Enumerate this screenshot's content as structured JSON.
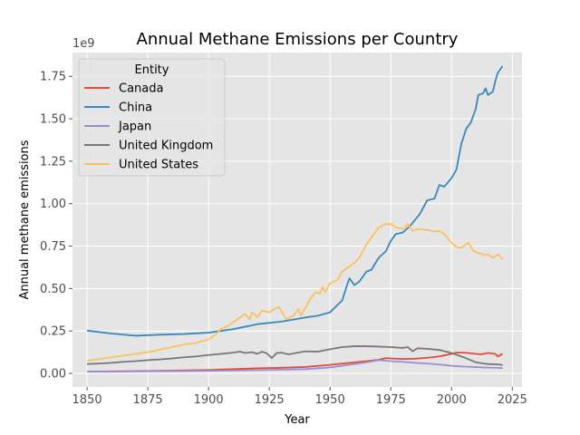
{
  "chart_data": {
    "type": "line",
    "title": "Annual Methane Emissions per Country",
    "xlabel": "Year",
    "ylabel": "Annual methane emissions",
    "y_multiplier_label": "1e9",
    "xlim": [
      1844,
      2029
    ],
    "ylim": [
      -80000000,
      1890000000
    ],
    "x_ticks": [
      1850,
      1875,
      1900,
      1925,
      1950,
      1975,
      2000,
      2025
    ],
    "y_ticks": [
      0,
      250000000,
      500000000,
      750000000,
      1000000000,
      1250000000,
      1500000000,
      1750000000
    ],
    "y_tick_labels": [
      "0.00",
      "0.25",
      "0.50",
      "0.75",
      "1.00",
      "1.25",
      "1.50",
      "1.75"
    ],
    "grid": true,
    "legend_title": "Entity",
    "legend_position": "upper-left",
    "series": [
      {
        "name": "Canada",
        "color": "#E24A33",
        "points": [
          [
            1850,
            10000000
          ],
          [
            1875,
            14000000
          ],
          [
            1900,
            20000000
          ],
          [
            1920,
            30000000
          ],
          [
            1930,
            33000000
          ],
          [
            1940,
            38000000
          ],
          [
            1950,
            50000000
          ],
          [
            1960,
            65000000
          ],
          [
            1965,
            72000000
          ],
          [
            1970,
            80000000
          ],
          [
            1973,
            90000000
          ],
          [
            1975,
            88000000
          ],
          [
            1980,
            85000000
          ],
          [
            1985,
            86000000
          ],
          [
            1990,
            92000000
          ],
          [
            1995,
            100000000
          ],
          [
            2000,
            115000000
          ],
          [
            2002,
            122000000
          ],
          [
            2005,
            122000000
          ],
          [
            2008,
            118000000
          ],
          [
            2012,
            112000000
          ],
          [
            2015,
            120000000
          ],
          [
            2018,
            115000000
          ],
          [
            2019,
            100000000
          ],
          [
            2021,
            115000000
          ]
        ]
      },
      {
        "name": "China",
        "color": "#348ABD",
        "points": [
          [
            1850,
            252000000
          ],
          [
            1860,
            235000000
          ],
          [
            1870,
            222000000
          ],
          [
            1880,
            228000000
          ],
          [
            1890,
            232000000
          ],
          [
            1900,
            240000000
          ],
          [
            1910,
            260000000
          ],
          [
            1920,
            290000000
          ],
          [
            1930,
            305000000
          ],
          [
            1940,
            330000000
          ],
          [
            1945,
            340000000
          ],
          [
            1950,
            360000000
          ],
          [
            1955,
            430000000
          ],
          [
            1957,
            520000000
          ],
          [
            1958,
            560000000
          ],
          [
            1960,
            520000000
          ],
          [
            1962,
            540000000
          ],
          [
            1965,
            600000000
          ],
          [
            1967,
            610000000
          ],
          [
            1970,
            680000000
          ],
          [
            1973,
            720000000
          ],
          [
            1975,
            780000000
          ],
          [
            1977,
            820000000
          ],
          [
            1980,
            830000000
          ],
          [
            1983,
            870000000
          ],
          [
            1987,
            940000000
          ],
          [
            1990,
            1020000000
          ],
          [
            1993,
            1030000000
          ],
          [
            1995,
            1110000000
          ],
          [
            1997,
            1100000000
          ],
          [
            2000,
            1150000000
          ],
          [
            2002,
            1200000000
          ],
          [
            2004,
            1350000000
          ],
          [
            2006,
            1440000000
          ],
          [
            2008,
            1480000000
          ],
          [
            2010,
            1560000000
          ],
          [
            2011,
            1640000000
          ],
          [
            2013,
            1650000000
          ],
          [
            2014,
            1680000000
          ],
          [
            2015,
            1640000000
          ],
          [
            2017,
            1660000000
          ],
          [
            2018,
            1720000000
          ],
          [
            2019,
            1770000000
          ],
          [
            2021,
            1810000000
          ]
        ]
      },
      {
        "name": "Japan",
        "color": "#988ED5",
        "points": [
          [
            1850,
            10000000
          ],
          [
            1875,
            12000000
          ],
          [
            1900,
            15000000
          ],
          [
            1925,
            20000000
          ],
          [
            1940,
            25000000
          ],
          [
            1950,
            35000000
          ],
          [
            1955,
            45000000
          ],
          [
            1960,
            55000000
          ],
          [
            1965,
            65000000
          ],
          [
            1970,
            78000000
          ],
          [
            1975,
            72000000
          ],
          [
            1980,
            68000000
          ],
          [
            1985,
            62000000
          ],
          [
            1990,
            58000000
          ],
          [
            1995,
            52000000
          ],
          [
            2000,
            45000000
          ],
          [
            2005,
            40000000
          ],
          [
            2010,
            37000000
          ],
          [
            2015,
            34000000
          ],
          [
            2020,
            32000000
          ],
          [
            2021,
            31000000
          ]
        ]
      },
      {
        "name": "United Kingdom",
        "color": "#777777",
        "points": [
          [
            1850,
            55000000
          ],
          [
            1855,
            58000000
          ],
          [
            1860,
            62000000
          ],
          [
            1865,
            68000000
          ],
          [
            1870,
            72000000
          ],
          [
            1875,
            78000000
          ],
          [
            1880,
            82000000
          ],
          [
            1885,
            88000000
          ],
          [
            1890,
            95000000
          ],
          [
            1895,
            100000000
          ],
          [
            1900,
            108000000
          ],
          [
            1905,
            115000000
          ],
          [
            1910,
            122000000
          ],
          [
            1913,
            128000000
          ],
          [
            1915,
            120000000
          ],
          [
            1918,
            125000000
          ],
          [
            1920,
            115000000
          ],
          [
            1922,
            128000000
          ],
          [
            1924,
            118000000
          ],
          [
            1926,
            90000000
          ],
          [
            1928,
            120000000
          ],
          [
            1930,
            122000000
          ],
          [
            1933,
            112000000
          ],
          [
            1936,
            120000000
          ],
          [
            1940,
            130000000
          ],
          [
            1945,
            128000000
          ],
          [
            1950,
            142000000
          ],
          [
            1955,
            155000000
          ],
          [
            1960,
            160000000
          ],
          [
            1965,
            160000000
          ],
          [
            1970,
            158000000
          ],
          [
            1975,
            155000000
          ],
          [
            1980,
            150000000
          ],
          [
            1982,
            155000000
          ],
          [
            1984,
            130000000
          ],
          [
            1986,
            148000000
          ],
          [
            1990,
            145000000
          ],
          [
            1995,
            138000000
          ],
          [
            2000,
            120000000
          ],
          [
            2005,
            95000000
          ],
          [
            2010,
            65000000
          ],
          [
            2015,
            55000000
          ],
          [
            2020,
            52000000
          ],
          [
            2021,
            48000000
          ]
        ]
      },
      {
        "name": "United States",
        "color": "#FBC15E",
        "points": [
          [
            1850,
            75000000
          ],
          [
            1855,
            85000000
          ],
          [
            1860,
            95000000
          ],
          [
            1865,
            105000000
          ],
          [
            1870,
            115000000
          ],
          [
            1875,
            125000000
          ],
          [
            1880,
            140000000
          ],
          [
            1885,
            155000000
          ],
          [
            1890,
            170000000
          ],
          [
            1895,
            180000000
          ],
          [
            1900,
            200000000
          ],
          [
            1903,
            230000000
          ],
          [
            1905,
            260000000
          ],
          [
            1908,
            280000000
          ],
          [
            1910,
            300000000
          ],
          [
            1913,
            330000000
          ],
          [
            1915,
            350000000
          ],
          [
            1917,
            320000000
          ],
          [
            1918,
            360000000
          ],
          [
            1920,
            330000000
          ],
          [
            1922,
            370000000
          ],
          [
            1925,
            360000000
          ],
          [
            1927,
            380000000
          ],
          [
            1929,
            390000000
          ],
          [
            1932,
            320000000
          ],
          [
            1935,
            340000000
          ],
          [
            1937,
            380000000
          ],
          [
            1938,
            340000000
          ],
          [
            1940,
            390000000
          ],
          [
            1942,
            440000000
          ],
          [
            1944,
            480000000
          ],
          [
            1946,
            470000000
          ],
          [
            1947,
            510000000
          ],
          [
            1948,
            480000000
          ],
          [
            1950,
            530000000
          ],
          [
            1953,
            550000000
          ],
          [
            1955,
            600000000
          ],
          [
            1957,
            620000000
          ],
          [
            1960,
            650000000
          ],
          [
            1962,
            680000000
          ],
          [
            1965,
            760000000
          ],
          [
            1967,
            800000000
          ],
          [
            1970,
            860000000
          ],
          [
            1973,
            880000000
          ],
          [
            1975,
            880000000
          ],
          [
            1977,
            860000000
          ],
          [
            1980,
            850000000
          ],
          [
            1982,
            880000000
          ],
          [
            1984,
            840000000
          ],
          [
            1986,
            850000000
          ],
          [
            1990,
            845000000
          ],
          [
            1993,
            835000000
          ],
          [
            1995,
            840000000
          ],
          [
            1997,
            820000000
          ],
          [
            2000,
            770000000
          ],
          [
            2002,
            745000000
          ],
          [
            2004,
            740000000
          ],
          [
            2006,
            760000000
          ],
          [
            2007,
            770000000
          ],
          [
            2009,
            720000000
          ],
          [
            2011,
            710000000
          ],
          [
            2013,
            700000000
          ],
          [
            2015,
            700000000
          ],
          [
            2017,
            680000000
          ],
          [
            2019,
            700000000
          ],
          [
            2020,
            690000000
          ],
          [
            2021,
            670000000
          ]
        ]
      }
    ]
  }
}
